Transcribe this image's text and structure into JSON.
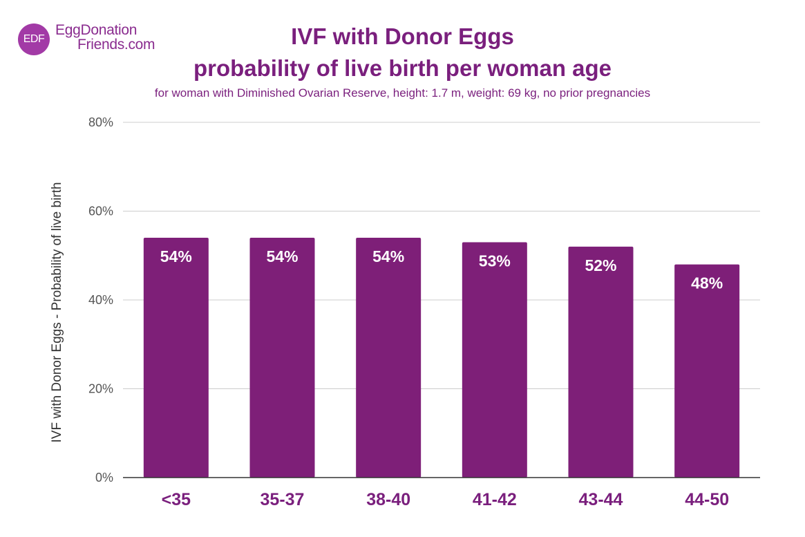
{
  "logo": {
    "mark": "EDF",
    "line1": "EggDonation",
    "line2": "Friends.com"
  },
  "chart_data": {
    "type": "bar",
    "title": "IVF with Donor Eggs",
    "title_line2": "probability of live birth per woman age",
    "subtitle": "for woman with Diminished Ovarian Reserve, height: 1.7 m, weight: 69 kg, no prior pregnancies",
    "xlabel": "",
    "ylabel": "IVF with Donor Eggs - Probability of live birth",
    "categories": [
      "<35",
      "35-37",
      "38-40",
      "41-42",
      "43-44",
      "44-50"
    ],
    "values": [
      54,
      54,
      54,
      53,
      52,
      48
    ],
    "data_labels": [
      "54%",
      "54%",
      "54%",
      "53%",
      "52%",
      "48%"
    ],
    "ylim": [
      0,
      80
    ],
    "yticks": [
      0,
      20,
      40,
      60,
      80
    ],
    "ytick_labels": [
      "0%",
      "20%",
      "40%",
      "60%",
      "80%"
    ],
    "grid": true,
    "legend": "none",
    "colors": {
      "bar": "#7e1f78",
      "title": "#7a1f7d",
      "grid": "#cccccc",
      "axis": "#333333",
      "tick_text": "#555555",
      "bar_label": "#ffffff"
    }
  }
}
